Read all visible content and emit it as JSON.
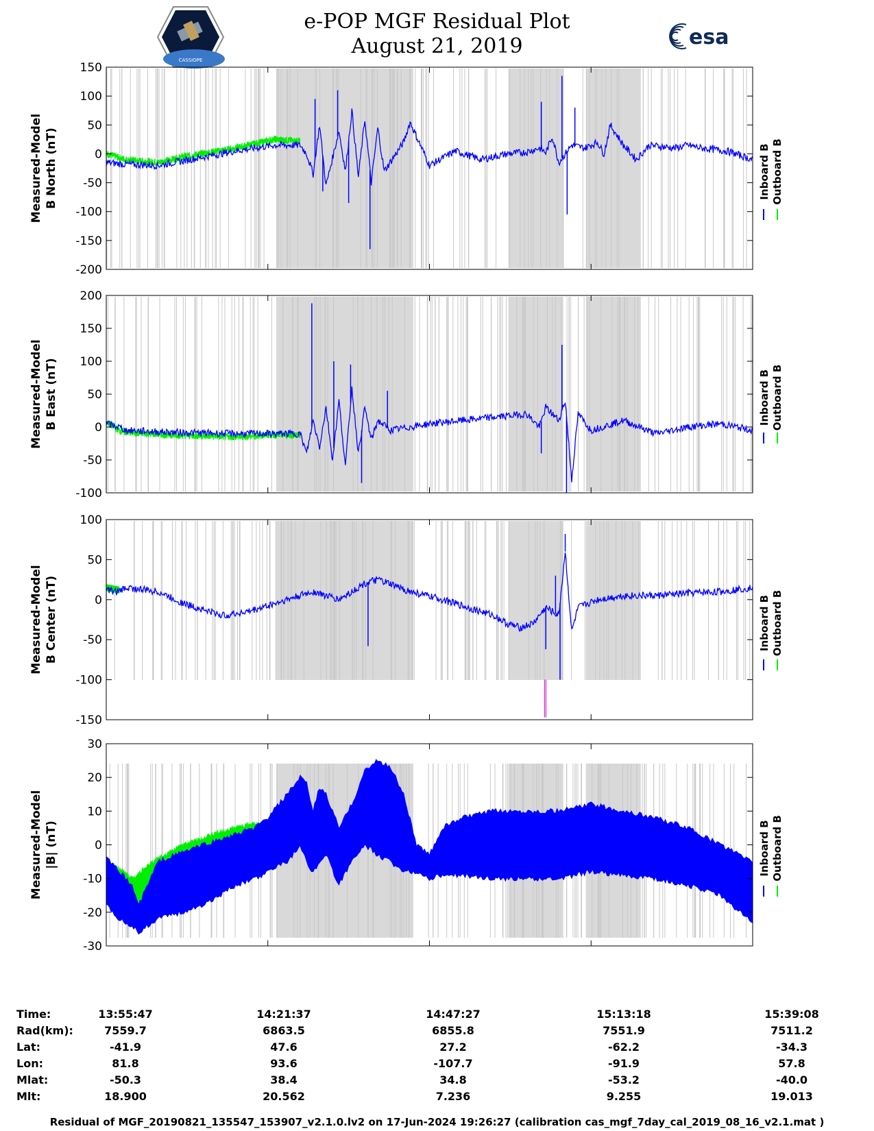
{
  "header": {
    "title_line1": "e-POP MGF Residual Plot",
    "title_line2": "August 21, 2019",
    "left_logo_text": "CASSIOPE",
    "right_logo_text": "esa"
  },
  "colors": {
    "inboard": "#0000ff",
    "outboard": "#00ee00",
    "shade": "#d9d9d9",
    "marker": "#cc00cc"
  },
  "legend": {
    "inboard": "Inboard B",
    "outboard": "Outboard B"
  },
  "chart_data": [
    {
      "type": "line",
      "title": "B North",
      "ylabel_line1": "Measured-Model",
      "ylabel_line2": "B North (nT)",
      "ylim": [
        -200,
        150
      ],
      "yticks": [
        150,
        100,
        50,
        0,
        -50,
        -100,
        -150,
        -200
      ],
      "series": [
        {
          "name": "Inboard B",
          "x": [
            0,
            3,
            8,
            12,
            20,
            26,
            30,
            31,
            32,
            33,
            34,
            36,
            37,
            38,
            39,
            40,
            41,
            42,
            43,
            46,
            47,
            50,
            54,
            58,
            60,
            62,
            65,
            67,
            68,
            69,
            70,
            72,
            74,
            76,
            77,
            78,
            80,
            82,
            84,
            88,
            90,
            92,
            96,
            100
          ],
          "y": [
            -15,
            -18,
            -20,
            -12,
            5,
            15,
            15,
            0,
            -35,
            50,
            -55,
            40,
            -30,
            75,
            -40,
            60,
            -50,
            45,
            -30,
            20,
            55,
            -20,
            5,
            -10,
            -5,
            0,
            3,
            10,
            2,
            30,
            -15,
            15,
            10,
            20,
            0,
            50,
            15,
            -10,
            15,
            10,
            15,
            10,
            5,
            -10
          ]
        },
        {
          "name": "Outboard B",
          "x": [
            0,
            3,
            8,
            12,
            20,
            26,
            30
          ],
          "y": [
            0,
            -10,
            -15,
            -5,
            10,
            25,
            22
          ]
        }
      ],
      "spikes": [
        {
          "x": 32.3,
          "y": 95
        },
        {
          "x": 33.5,
          "y": -65
        },
        {
          "x": 35.8,
          "y": 110
        },
        {
          "x": 37.5,
          "y": -85
        },
        {
          "x": 40.8,
          "y": -165
        },
        {
          "x": 67.3,
          "y": 90
        },
        {
          "x": 70.5,
          "y": 135
        },
        {
          "x": 71.3,
          "y": -105
        },
        {
          "x": 72.5,
          "y": 80
        }
      ]
    },
    {
      "type": "line",
      "title": "B East",
      "ylabel_line1": "Measured-Model",
      "ylabel_line2": "B East (nT)",
      "ylim": [
        -100,
        200
      ],
      "yticks": [
        200,
        150,
        100,
        50,
        0,
        -50,
        -100
      ],
      "series": [
        {
          "name": "Inboard B",
          "x": [
            0,
            2,
            3,
            10,
            20,
            25,
            30,
            31,
            32,
            33,
            34,
            35,
            36,
            37,
            38,
            39,
            40,
            41,
            42,
            44,
            47,
            50,
            55,
            60,
            65,
            67,
            68,
            70,
            71,
            72,
            73,
            75,
            80,
            85,
            90,
            95,
            100
          ],
          "y": [
            5,
            0,
            -5,
            -8,
            -10,
            -10,
            -10,
            -40,
            10,
            -30,
            30,
            -50,
            40,
            -60,
            60,
            -40,
            30,
            -20,
            10,
            -5,
            0,
            5,
            10,
            15,
            20,
            0,
            30,
            10,
            40,
            -80,
            20,
            -5,
            10,
            -10,
            0,
            5,
            -5
          ]
        },
        {
          "name": "Outboard B",
          "x": [
            0,
            2,
            3,
            10,
            20,
            25,
            30
          ],
          "y": [
            8,
            -5,
            -8,
            -12,
            -15,
            -12,
            -12
          ]
        }
      ],
      "spikes": [
        {
          "x": 31.8,
          "y": 188
        },
        {
          "x": 35.2,
          "y": 100
        },
        {
          "x": 37.8,
          "y": 95
        },
        {
          "x": 39.5,
          "y": -85
        },
        {
          "x": 43.5,
          "y": 55
        },
        {
          "x": 70.5,
          "y": 125
        },
        {
          "x": 71.2,
          "y": -100
        },
        {
          "x": 67.3,
          "y": -40
        }
      ]
    },
    {
      "type": "line",
      "title": "B Center",
      "ylabel_line1": "Measured-Model",
      "ylabel_line2": "B Center (nT)",
      "ylim": [
        -150,
        100
      ],
      "yticks": [
        100,
        50,
        0,
        -50,
        -100,
        -150
      ],
      "series": [
        {
          "name": "Inboard B",
          "x": [
            0,
            2,
            3,
            8,
            12,
            18,
            22,
            28,
            32,
            36,
            40,
            42,
            47,
            52,
            56,
            60,
            62,
            64,
            66,
            67,
            68,
            70,
            71,
            72,
            73,
            76,
            80,
            85,
            90,
            95,
            100
          ],
          "y": [
            12,
            10,
            15,
            10,
            -5,
            -20,
            -15,
            0,
            10,
            0,
            20,
            25,
            10,
            0,
            -10,
            -20,
            -30,
            -35,
            -30,
            -20,
            -10,
            -20,
            60,
            -40,
            -10,
            0,
            5,
            5,
            8,
            10,
            15
          ]
        },
        {
          "name": "Outboard B",
          "x": [
            0,
            2
          ],
          "y": [
            15,
            12
          ]
        }
      ],
      "spikes": [
        {
          "x": 40.5,
          "y": -58
        },
        {
          "x": 68.0,
          "y": -62
        },
        {
          "x": 69.5,
          "y": 30
        },
        {
          "x": 70.2,
          "y": -100
        },
        {
          "x": 71.0,
          "y": 82
        }
      ],
      "markers": [
        {
          "x": 67.8,
          "y_from": -100,
          "y_to": -147
        }
      ]
    },
    {
      "type": "area",
      "title": "|B|",
      "ylabel_line1": "Measured-Model",
      "ylabel_line2": "|B| (nT)",
      "ylim": [
        -30,
        30
      ],
      "yticks": [
        30,
        20,
        10,
        0,
        -10,
        -20,
        -30
      ],
      "series": [
        {
          "name": "Inboard B",
          "x": [
            0,
            2,
            4,
            5,
            8,
            12,
            15,
            20,
            23,
            25,
            28,
            30,
            31,
            32,
            33,
            34,
            36,
            38,
            40,
            42,
            44,
            46,
            48,
            50,
            52,
            55,
            60,
            65,
            70,
            75,
            80,
            85,
            90,
            95,
            100
          ],
          "upper": [
            -4,
            -8,
            -12,
            -18,
            -5,
            -2,
            0,
            3,
            5,
            8,
            15,
            20,
            18,
            10,
            17,
            15,
            5,
            12,
            22,
            25,
            23,
            15,
            0,
            -3,
            5,
            8,
            10,
            10,
            10,
            12,
            10,
            8,
            5,
            0,
            -5
          ],
          "lower": [
            -18,
            -22,
            -24,
            -26,
            -22,
            -20,
            -18,
            -12,
            -10,
            -8,
            -5,
            0,
            -5,
            -8,
            -5,
            -3,
            -12,
            -5,
            0,
            -3,
            -5,
            -8,
            -8,
            -10,
            -9,
            -9,
            -10,
            -10,
            -10,
            -8,
            -9,
            -10,
            -12,
            -15,
            -23
          ]
        },
        {
          "name": "Outboard B",
          "x": [
            0,
            2,
            4,
            8,
            12,
            15,
            18,
            22,
            25
          ],
          "upper": [
            -5,
            -7,
            -10,
            -4,
            0,
            2,
            4,
            6,
            6
          ],
          "lower": [
            -15,
            -18,
            -20,
            -16,
            -12,
            -10,
            -8,
            -4,
            -2
          ]
        }
      ]
    }
  ],
  "x_axis": {
    "tick_positions": [
      0,
      25,
      50,
      75,
      100
    ],
    "row_labels": [
      "Time:",
      "Rad(km):",
      "Lat:",
      "Lon:",
      "Mlat:",
      "Mlt:"
    ],
    "columns": [
      [
        "13:55:47",
        "7559.7",
        "-41.9",
        "81.8",
        "-50.3",
        "18.900"
      ],
      [
        "14:21:37",
        "6863.5",
        "47.6",
        "93.6",
        "38.4",
        "20.562"
      ],
      [
        "14:47:27",
        "6855.8",
        "27.2",
        "-107.7",
        "34.8",
        "7.236"
      ],
      [
        "15:13:18",
        "7551.9",
        "-62.2",
        "-91.9",
        "-53.2",
        "9.255"
      ],
      [
        "15:39:08",
        "7511.2",
        "-34.3",
        "57.8",
        "-40.0",
        "19.013"
      ]
    ]
  },
  "shaded_regions": [
    [
      26.3,
      47.5
    ],
    [
      62.2,
      70.7
    ],
    [
      74.2,
      82.7
    ]
  ],
  "footer": "Residual of MGF_20190821_135547_153907_v2.1.0.lv2 on 17-Jun-2024 19:26:27 (calibration cas_mgf_7day_cal_2019_08_16_v2.1.mat )"
}
